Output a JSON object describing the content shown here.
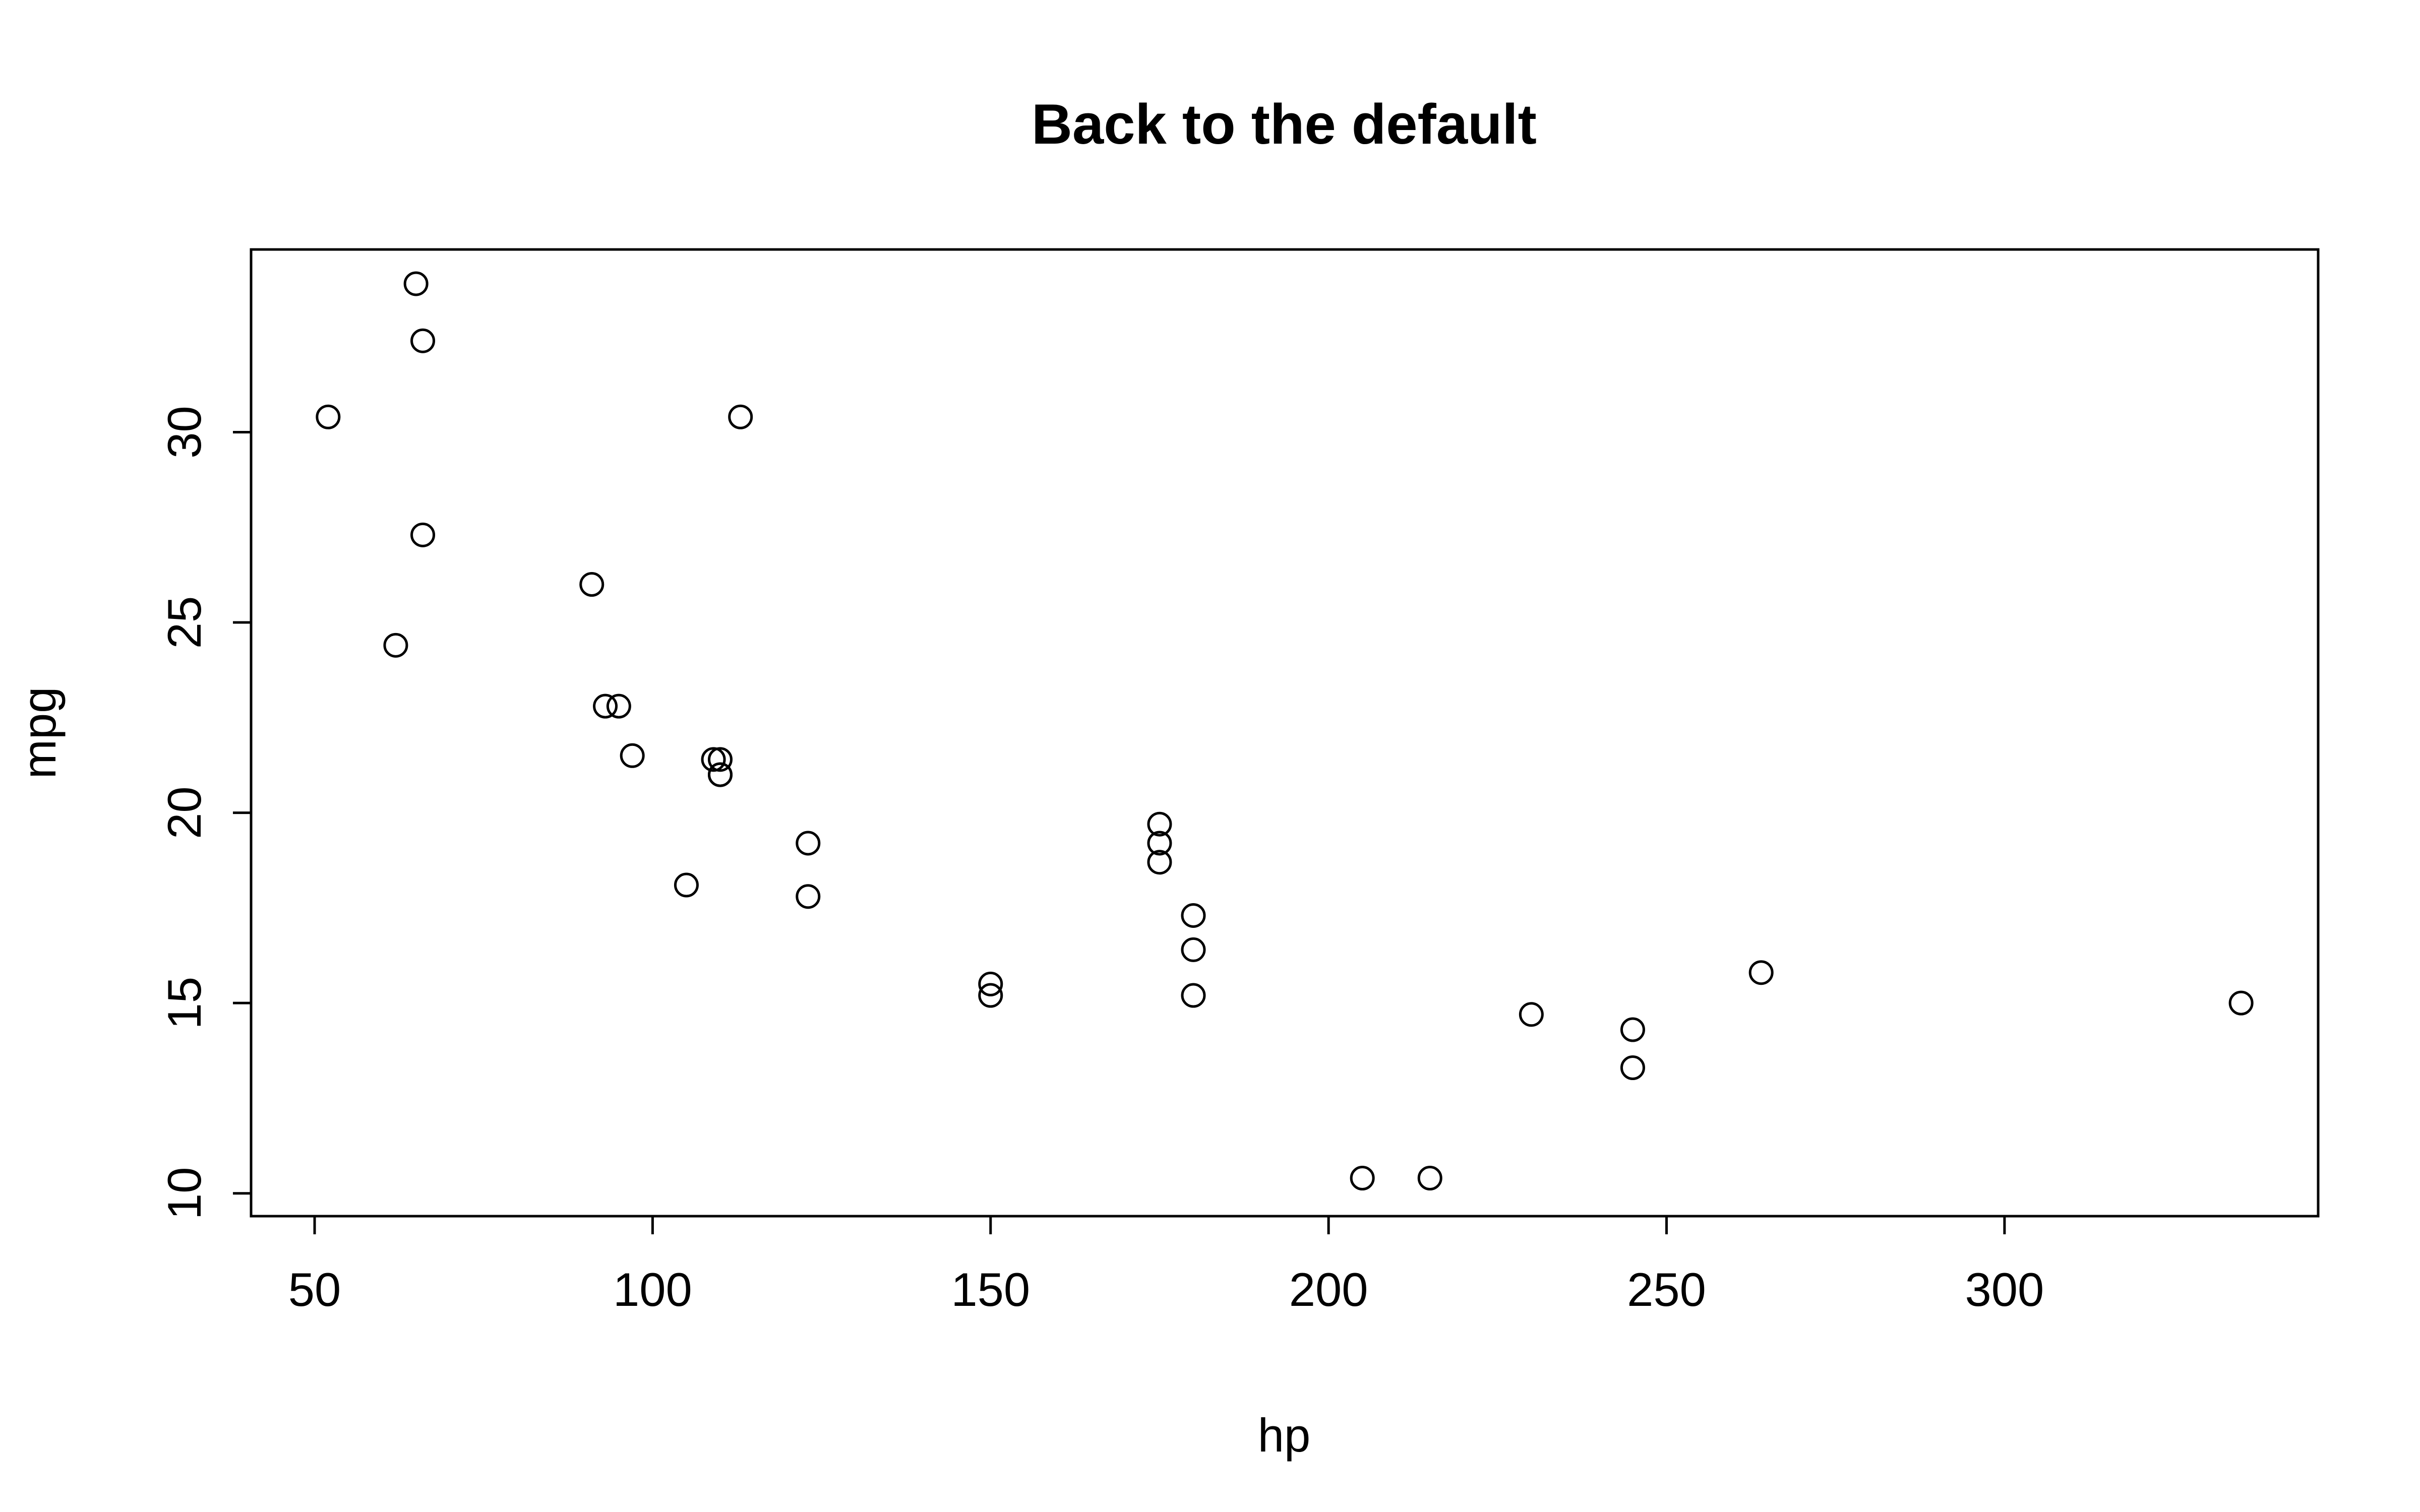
{
  "chart_data": {
    "type": "scatter",
    "title": "Back to the default",
    "xlabel": "hp",
    "ylabel": "mpg",
    "xlim": [
      40.6,
      346.4
    ],
    "ylim": [
      9.4,
      34.8
    ],
    "x_ticks": [
      50,
      100,
      150,
      200,
      250,
      300
    ],
    "y_ticks": [
      10,
      15,
      20,
      25,
      30
    ],
    "grid": false,
    "legend": "none",
    "marker": "open-circle",
    "color": "#000000",
    "series": [
      {
        "points": [
          {
            "x": 110,
            "y": 21.0
          },
          {
            "x": 110,
            "y": 21.0
          },
          {
            "x": 93,
            "y": 22.8
          },
          {
            "x": 110,
            "y": 21.4
          },
          {
            "x": 175,
            "y": 18.7
          },
          {
            "x": 105,
            "y": 18.1
          },
          {
            "x": 245,
            "y": 14.3
          },
          {
            "x": 62,
            "y": 24.4
          },
          {
            "x": 95,
            "y": 22.8
          },
          {
            "x": 123,
            "y": 19.2
          },
          {
            "x": 123,
            "y": 17.8
          },
          {
            "x": 180,
            "y": 16.4
          },
          {
            "x": 180,
            "y": 17.3
          },
          {
            "x": 180,
            "y": 15.2
          },
          {
            "x": 205,
            "y": 10.4
          },
          {
            "x": 215,
            "y": 10.4
          },
          {
            "x": 230,
            "y": 14.7
          },
          {
            "x": 66,
            "y": 32.4
          },
          {
            "x": 52,
            "y": 30.4
          },
          {
            "x": 65,
            "y": 33.9
          },
          {
            "x": 97,
            "y": 21.5
          },
          {
            "x": 150,
            "y": 15.5
          },
          {
            "x": 150,
            "y": 15.2
          },
          {
            "x": 245,
            "y": 13.3
          },
          {
            "x": 175,
            "y": 19.2
          },
          {
            "x": 66,
            "y": 27.3
          },
          {
            "x": 91,
            "y": 26.0
          },
          {
            "x": 113,
            "y": 30.4
          },
          {
            "x": 264,
            "y": 15.8
          },
          {
            "x": 175,
            "y": 19.7
          },
          {
            "x": 335,
            "y": 15.0
          },
          {
            "x": 109,
            "y": 21.4
          }
        ]
      }
    ]
  }
}
